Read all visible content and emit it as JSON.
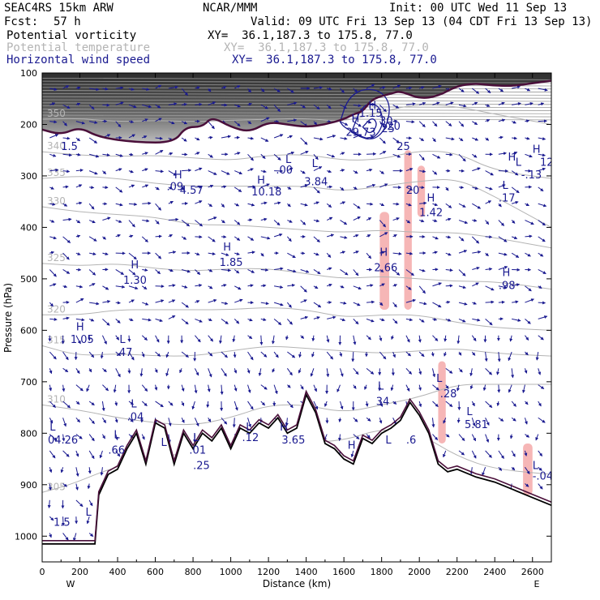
{
  "header": {
    "model": "SEAC4RS 15km ARW",
    "center": "NCAR/MMM",
    "init": "Init: 00 UTC Wed 11 Sep 13",
    "fcst_label": "Fcst:",
    "fcst_value": "57 h",
    "valid": "Valid: 09 UTC Fri 13 Sep 13 (04 CDT Fri 13 Sep 13)"
  },
  "fields": [
    {
      "name": "Potential vorticity",
      "xy": "XY=  36.1,187.3 to 175.8, 77.0",
      "color": "#000000"
    },
    {
      "name": "Potential temperature",
      "xy": "XY=  36.1,187.3 to 175.8, 77.0",
      "color": "#b4b4b4"
    },
    {
      "name": "Horizontal wind speed",
      "xy": "XY=  36.1,187.3 to 175.8, 77.0",
      "color": "#1a1a90"
    }
  ],
  "chart_data": {
    "type": "cross-section",
    "xlabel": "Distance (km)",
    "ylabel": "Pressure (hPa)",
    "xlim": [
      0,
      2700
    ],
    "ylim": [
      1050,
      100
    ],
    "x_ticks": [
      "0",
      "200",
      "400",
      "600",
      "800",
      "1000",
      "1200",
      "1400",
      "1600",
      "1800",
      "2000",
      "2200",
      "2400",
      "2600"
    ],
    "y_ticks": [
      "100",
      "200",
      "300",
      "400",
      "500",
      "600",
      "700",
      "800",
      "900",
      "1000"
    ],
    "end_labels": {
      "west": "W",
      "east": "E"
    },
    "theta_contours": [
      {
        "label": "305",
        "points": [
          [
            0,
            915
          ],
          [
            150,
            900
          ],
          [
            350,
            870
          ],
          [
            600,
            845
          ],
          [
            900,
            835
          ],
          [
            1300,
            820
          ],
          [
            1600,
            815
          ],
          [
            1800,
            790
          ],
          [
            2000,
            800
          ],
          [
            2200,
            845
          ],
          [
            2400,
            870
          ],
          [
            2700,
            880
          ]
        ]
      },
      {
        "label": "310",
        "points": [
          [
            0,
            745
          ],
          [
            200,
            755
          ],
          [
            400,
            770
          ],
          [
            600,
            780
          ],
          [
            800,
            785
          ],
          [
            1000,
            770
          ],
          [
            1200,
            745
          ],
          [
            1400,
            745
          ],
          [
            1600,
            760
          ],
          [
            1800,
            745
          ],
          [
            2000,
            730
          ],
          [
            2200,
            705
          ],
          [
            2400,
            705
          ],
          [
            2700,
            705
          ]
        ]
      },
      {
        "label": "315",
        "points": [
          [
            0,
            630
          ],
          [
            200,
            650
          ],
          [
            400,
            645
          ],
          [
            600,
            650
          ],
          [
            800,
            650
          ],
          [
            1000,
            640
          ],
          [
            1200,
            630
          ],
          [
            1400,
            635
          ],
          [
            1600,
            640
          ],
          [
            1800,
            645
          ],
          [
            2000,
            640
          ],
          [
            2200,
            635
          ],
          [
            2400,
            645
          ],
          [
            2700,
            650
          ]
        ]
      },
      {
        "label": "320",
        "points": [
          [
            0,
            570
          ],
          [
            200,
            570
          ],
          [
            400,
            560
          ],
          [
            600,
            560
          ],
          [
            800,
            560
          ],
          [
            1000,
            560
          ],
          [
            1200,
            555
          ],
          [
            1400,
            560
          ],
          [
            1600,
            575
          ],
          [
            1800,
            570
          ],
          [
            2000,
            570
          ],
          [
            2200,
            585
          ],
          [
            2400,
            595
          ],
          [
            2700,
            600
          ]
        ]
      },
      {
        "label": "325",
        "points": [
          [
            0,
            470
          ],
          [
            200,
            475
          ],
          [
            400,
            470
          ],
          [
            600,
            480
          ],
          [
            800,
            485
          ],
          [
            1000,
            480
          ],
          [
            1200,
            480
          ],
          [
            1400,
            490
          ],
          [
            1600,
            500
          ],
          [
            1800,
            495
          ],
          [
            2000,
            500
          ],
          [
            2200,
            505
          ],
          [
            2400,
            505
          ],
          [
            2700,
            520
          ]
        ]
      },
      {
        "label": "330",
        "points": [
          [
            0,
            360
          ],
          [
            200,
            370
          ],
          [
            400,
            375
          ],
          [
            600,
            380
          ],
          [
            800,
            395
          ],
          [
            1000,
            395
          ],
          [
            1200,
            400
          ],
          [
            1400,
            405
          ],
          [
            1600,
            410
          ],
          [
            1800,
            405
          ],
          [
            2000,
            410
          ],
          [
            2200,
            410
          ],
          [
            2400,
            420
          ],
          [
            2700,
            440
          ]
        ]
      },
      {
        "label": "335",
        "points": [
          [
            0,
            305
          ],
          [
            200,
            300
          ],
          [
            400,
            305
          ],
          [
            600,
            315
          ],
          [
            800,
            320
          ],
          [
            1000,
            320
          ],
          [
            1200,
            320
          ],
          [
            1400,
            320
          ],
          [
            1600,
            330
          ],
          [
            1800,
            320
          ],
          [
            2000,
            310
          ],
          [
            2200,
            305
          ],
          [
            2400,
            340
          ],
          [
            2700,
            400
          ]
        ]
      },
      {
        "label": "340",
        "points": [
          [
            0,
            253
          ],
          [
            200,
            260
          ],
          [
            400,
            262
          ],
          [
            600,
            260
          ],
          [
            800,
            265
          ],
          [
            1000,
            270
          ],
          [
            1200,
            260
          ],
          [
            1400,
            258
          ],
          [
            1600,
            270
          ],
          [
            1800,
            268
          ],
          [
            2000,
            250
          ],
          [
            2200,
            255
          ],
          [
            2400,
            290
          ],
          [
            2700,
            305
          ]
        ]
      },
      {
        "label": "350",
        "points": [
          [
            0,
            190
          ],
          [
            200,
            188
          ],
          [
            400,
            195
          ],
          [
            600,
            192
          ],
          [
            800,
            195
          ],
          [
            1000,
            192
          ],
          [
            1200,
            190
          ],
          [
            1400,
            188
          ],
          [
            1600,
            195
          ],
          [
            1800,
            175
          ],
          [
            2000,
            160
          ],
          [
            2200,
            165
          ],
          [
            2400,
            180
          ],
          [
            2700,
            200
          ]
        ]
      }
    ],
    "pv_2pvu": [
      [
        0,
        210
      ],
      [
        100,
        220
      ],
      [
        200,
        205
      ],
      [
        300,
        225
      ],
      [
        500,
        235
      ],
      [
        700,
        235
      ],
      [
        760,
        205
      ],
      [
        850,
        205
      ],
      [
        900,
        185
      ],
      [
        1000,
        205
      ],
      [
        1100,
        215
      ],
      [
        1200,
        195
      ],
      [
        1300,
        200
      ],
      [
        1400,
        205
      ],
      [
        1500,
        200
      ],
      [
        1600,
        190
      ],
      [
        1650,
        180
      ],
      [
        1700,
        175
      ],
      [
        1750,
        150
      ],
      [
        1850,
        140
      ],
      [
        1900,
        135
      ],
      [
        2000,
        150
      ],
      [
        2100,
        145
      ],
      [
        2200,
        125
      ],
      [
        2300,
        120
      ],
      [
        2400,
        125
      ],
      [
        2500,
        125
      ],
      [
        2600,
        120
      ],
      [
        2700,
        115
      ]
    ],
    "terrain": [
      [
        0,
        1015
      ],
      [
        100,
        1015
      ],
      [
        280,
        1015
      ],
      [
        300,
        920
      ],
      [
        350,
        880
      ],
      [
        400,
        870
      ],
      [
        450,
        830
      ],
      [
        500,
        800
      ],
      [
        550,
        860
      ],
      [
        600,
        780
      ],
      [
        650,
        790
      ],
      [
        700,
        860
      ],
      [
        750,
        800
      ],
      [
        800,
        830
      ],
      [
        850,
        800
      ],
      [
        900,
        815
      ],
      [
        950,
        790
      ],
      [
        1000,
        830
      ],
      [
        1050,
        790
      ],
      [
        1100,
        800
      ],
      [
        1150,
        780
      ],
      [
        1200,
        790
      ],
      [
        1250,
        770
      ],
      [
        1300,
        800
      ],
      [
        1350,
        790
      ],
      [
        1400,
        725
      ],
      [
        1450,
        760
      ],
      [
        1500,
        820
      ],
      [
        1550,
        830
      ],
      [
        1600,
        850
      ],
      [
        1650,
        860
      ],
      [
        1700,
        810
      ],
      [
        1750,
        820
      ],
      [
        1800,
        800
      ],
      [
        1850,
        790
      ],
      [
        1900,
        775
      ],
      [
        1950,
        740
      ],
      [
        2000,
        765
      ],
      [
        2050,
        800
      ],
      [
        2100,
        860
      ],
      [
        2150,
        875
      ],
      [
        2200,
        870
      ],
      [
        2300,
        885
      ],
      [
        2400,
        895
      ],
      [
        2500,
        910
      ],
      [
        2600,
        925
      ],
      [
        2700,
        940
      ]
    ],
    "wind_speed_contours": [
      {
        "label": "20",
        "points": [
          [
            1580,
            195
          ],
          [
            1620,
            150
          ],
          [
            1700,
            130
          ],
          [
            1800,
            135
          ],
          [
            1850,
            165
          ],
          [
            1820,
            210
          ],
          [
            1760,
            230
          ],
          [
            1700,
            225
          ],
          [
            1650,
            215
          ],
          [
            1600,
            205
          ],
          [
            1580,
            195
          ]
        ]
      },
      {
        "label": "25",
        "points": [
          [
            1640,
            215
          ],
          [
            1700,
            160
          ],
          [
            1780,
            160
          ],
          [
            1810,
            190
          ],
          [
            1790,
            215
          ],
          [
            1740,
            230
          ],
          [
            1690,
            225
          ],
          [
            1640,
            215
          ]
        ]
      },
      {
        "label": "30",
        "points": [
          [
            1700,
            205
          ],
          [
            1750,
            185
          ],
          [
            1780,
            200
          ],
          [
            1740,
            220
          ],
          [
            1700,
            205
          ]
        ]
      }
    ],
    "labels": [
      {
        "text": "H",
        "x": 1640,
        "y": 195
      },
      {
        "text": "29.73",
        "x": 1610,
        "y": 222
      },
      {
        "text": "25",
        "x": 1880,
        "y": 250
      },
      {
        "text": "L",
        "x": 1290,
        "y": 275
      },
      {
        "text": ".00",
        "x": 1240,
        "y": 295
      },
      {
        "text": "L",
        "x": 1430,
        "y": 283
      },
      {
        "text": "3.84",
        "x": 1390,
        "y": 318
      },
      {
        "text": "H",
        "x": 1140,
        "y": 315
      },
      {
        "text": "10.18",
        "x": 1110,
        "y": 338
      },
      {
        "text": "H",
        "x": 700,
        "y": 305
      },
      {
        "text": ".09",
        "x": 660,
        "y": 328
      },
      {
        "text": "4.57",
        "x": 730,
        "y": 335
      },
      {
        "text": "20",
        "x": 1930,
        "y": 335
      },
      {
        "text": "H",
        "x": 2040,
        "y": 350
      },
      {
        "text": "1.42",
        "x": 2000,
        "y": 378
      },
      {
        "text": "L",
        "x": 2440,
        "y": 325
      },
      {
        "text": ".17",
        "x": 2420,
        "y": 350
      },
      {
        "text": "H",
        "x": 960,
        "y": 445
      },
      {
        "text": "1.85",
        "x": 940,
        "y": 475
      },
      {
        "text": "H",
        "x": 470,
        "y": 480
      },
      {
        "text": "1.30",
        "x": 430,
        "y": 510
      },
      {
        "text": "H",
        "x": 1790,
        "y": 455
      },
      {
        "text": "2.66",
        "x": 1760,
        "y": 485
      },
      {
        "text": "H",
        "x": 2440,
        "y": 495
      },
      {
        "text": ".98",
        "x": 2420,
        "y": 520
      },
      {
        "text": "H",
        "x": 180,
        "y": 600
      },
      {
        "text": "1.05",
        "x": 150,
        "y": 625
      },
      {
        "text": "L",
        "x": 410,
        "y": 625
      },
      {
        "text": ".47",
        "x": 390,
        "y": 650
      },
      {
        "text": "L",
        "x": 1780,
        "y": 715
      },
      {
        "text": "34",
        "x": 1770,
        "y": 745
      },
      {
        "text": "L",
        "x": 2090,
        "y": 700
      },
      {
        "text": ".28",
        "x": 2110,
        "y": 730
      },
      {
        "text": "L",
        "x": 470,
        "y": 750
      },
      {
        "text": ".04",
        "x": 450,
        "y": 775
      },
      {
        "text": "L",
        "x": 2250,
        "y": 765
      },
      {
        "text": "5.81",
        "x": 2240,
        "y": 790
      },
      {
        "text": "L",
        "x": 40,
        "y": 795
      },
      {
        "text": "04.26",
        "x": 30,
        "y": 820
      },
      {
        "text": "L",
        "x": 380,
        "y": 810
      },
      {
        "text": ".66",
        "x": 350,
        "y": 840
      },
      {
        "text": "L",
        "x": 1080,
        "y": 795
      },
      {
        "text": ".12",
        "x": 1060,
        "y": 815
      },
      {
        "text": "H",
        "x": 1260,
        "y": 795
      },
      {
        "text": "3.65",
        "x": 1270,
        "y": 820
      },
      {
        "text": "L",
        "x": 800,
        "y": 815
      },
      {
        "text": ".01",
        "x": 780,
        "y": 840
      },
      {
        "text": "L",
        "x": 630,
        "y": 825
      },
      {
        "text": "H",
        "x": 1620,
        "y": 830
      },
      {
        "text": "L",
        "x": 1820,
        "y": 820
      },
      {
        "text": ".6",
        "x": 1930,
        "y": 820
      },
      {
        "text": ".25",
        "x": 800,
        "y": 870
      },
      {
        "text": "L",
        "x": 2600,
        "y": 870
      },
      {
        "text": "-.04",
        "x": 2600,
        "y": 890
      },
      {
        "text": "H",
        "x": 2470,
        "y": 270
      },
      {
        "text": "H",
        "x": 2600,
        "y": 255
      },
      {
        "text": "L",
        "x": 2510,
        "y": 280
      },
      {
        "text": "12",
        "x": 2640,
        "y": 280
      },
      {
        "text": "-.13",
        "x": 2540,
        "y": 305
      },
      {
        "text": "H",
        "x": 1730,
        "y": 170
      },
      {
        "text": "1.15",
        "x": 1680,
        "y": 185
      },
      {
        "text": "1.5",
        "x": 100,
        "y": 250
      },
      {
        "text": "1.5",
        "x": 60,
        "y": 980
      },
      {
        "text": "L",
        "x": 230,
        "y": 960
      }
    ],
    "cloud_regions": [
      {
        "x0": 1790,
        "x1": 1840,
        "p0": 370,
        "p1": 560
      },
      {
        "x0": 1920,
        "x1": 1960,
        "p0": 250,
        "p1": 560
      },
      {
        "x0": 1990,
        "x1": 2030,
        "p0": 280,
        "p1": 380
      },
      {
        "x0": 2100,
        "x1": 2140,
        "p0": 660,
        "p1": 820
      },
      {
        "x0": 2550,
        "x1": 2600,
        "p0": 820,
        "p1": 920
      }
    ]
  }
}
